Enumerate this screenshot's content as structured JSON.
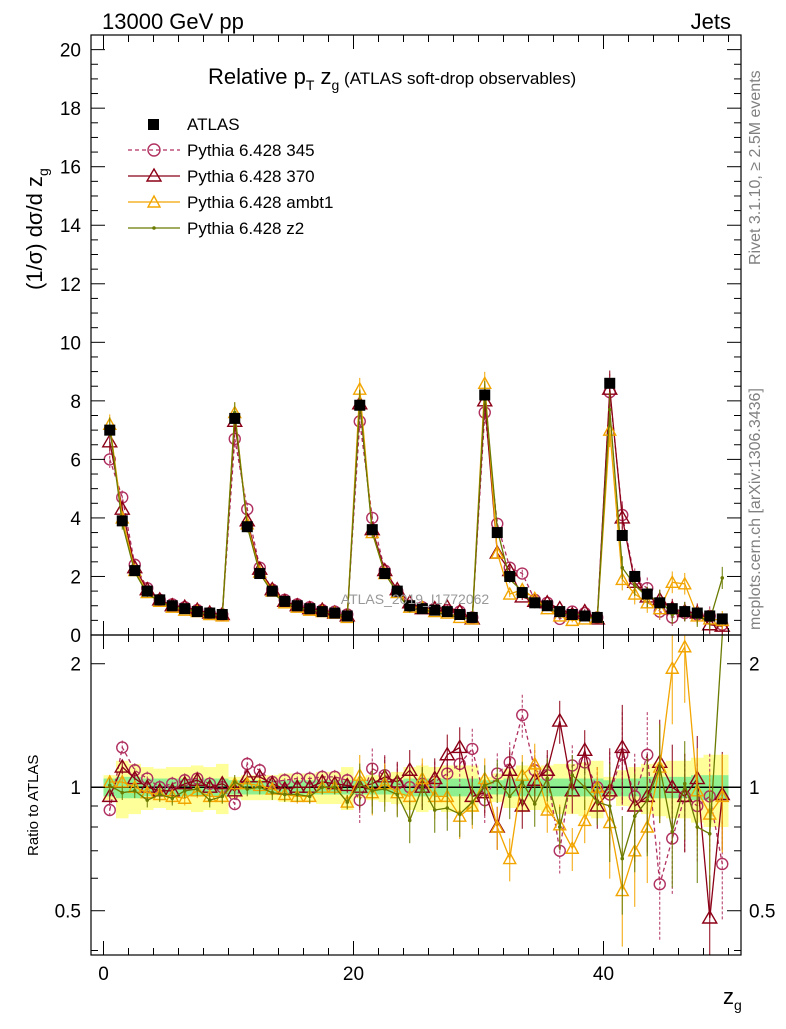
{
  "header": {
    "left": "13000 GeV pp",
    "right": "Jets",
    "side_top": "Rivet 3.1.10, ≥ 2.5M events",
    "side_bottom": "mcplots.cern.ch [arXiv:1306.3436]",
    "watermark": "ATLAS_2019_I1772062"
  },
  "colors": {
    "atlas": "#000000",
    "p345": "#b03060",
    "p370": "#8b0016",
    "ambt1": "#f2a500",
    "z2": "#6b7a00",
    "band_inner": "#90f090",
    "band_outer": "#ffff99"
  },
  "chart_data": [
    {
      "type": "line",
      "title": {
        "main": "Relative p",
        "sub": "T",
        "z": " z",
        "zsub": "g",
        "rest": " (ATLAS soft-drop observables)"
      },
      "ylabel": "(1/σ) dσ/d z",
      "ylabel_sub": "g",
      "ylim": [
        0,
        20.5
      ],
      "xlim": [
        -1,
        51
      ],
      "yticks": [
        "0",
        "2",
        "4",
        "6",
        "8",
        "10",
        "12",
        "14",
        "16",
        "18",
        "20"
      ],
      "legend_placement": "top-left",
      "legend": [
        "ATLAS",
        "Pythia 6.428 345",
        "Pythia 6.428 370",
        "Pythia 6.428 ambt1",
        "Pythia 6.428 z2"
      ],
      "x": [
        0.5,
        1.5,
        2.5,
        3.5,
        4.5,
        5.5,
        6.5,
        7.5,
        8.5,
        9.5,
        10.5,
        11.5,
        12.5,
        13.5,
        14.5,
        15.5,
        16.5,
        17.5,
        18.5,
        19.5,
        20.5,
        21.5,
        22.5,
        23.5,
        24.5,
        25.5,
        26.5,
        27.5,
        28.5,
        29.5,
        30.5,
        31.5,
        32.5,
        33.5,
        34.5,
        35.5,
        36.5,
        37.5,
        38.5,
        39.5,
        40.5,
        41.5,
        42.5,
        43.5,
        44.5,
        45.5,
        46.5,
        47.5,
        48.5,
        49.5
      ],
      "series": [
        {
          "name": "ATLAS",
          "values": [
            7.0,
            3.9,
            2.2,
            1.5,
            1.2,
            1.0,
            0.9,
            0.8,
            0.75,
            0.7,
            7.4,
            3.7,
            2.1,
            1.5,
            1.15,
            1.0,
            0.9,
            0.8,
            0.75,
            0.65,
            7.85,
            3.6,
            2.1,
            1.5,
            1.0,
            0.9,
            0.85,
            0.8,
            0.7,
            0.6,
            8.2,
            3.5,
            2.0,
            1.45,
            1.1,
            1.0,
            0.8,
            0.7,
            0.65,
            0.6,
            8.6,
            3.4,
            2.0,
            1.4,
            1.1,
            0.9,
            0.8,
            0.75,
            0.65,
            0.55
          ]
        },
        {
          "name": "Pythia 6.428 345",
          "values": [
            6.0,
            4.7,
            2.4,
            1.6,
            1.2,
            1.05,
            0.95,
            0.85,
            0.75,
            0.7,
            6.7,
            4.3,
            2.3,
            1.55,
            1.2,
            1.05,
            0.95,
            0.85,
            0.8,
            0.7,
            7.3,
            4.0,
            2.2,
            1.5,
            1.0,
            0.95,
            0.9,
            0.85,
            0.8,
            0.6,
            7.6,
            3.8,
            2.3,
            2.1,
            1.2,
            1.1,
            0.55,
            0.8,
            0.75,
            0.6,
            8.3,
            4.1,
            1.9,
            1.6,
            0.8,
            0.6,
            0.75,
            0.7,
            0.65,
            0.35
          ]
        },
        {
          "name": "Pythia 6.428 370",
          "values": [
            6.6,
            4.3,
            2.3,
            1.55,
            1.2,
            1.0,
            0.95,
            0.85,
            0.75,
            0.7,
            7.3,
            3.9,
            2.25,
            1.55,
            1.15,
            1.0,
            0.9,
            0.85,
            0.75,
            0.65,
            7.9,
            3.6,
            2.2,
            1.55,
            1.1,
            0.9,
            0.9,
            0.95,
            0.8,
            0.55,
            8.0,
            2.8,
            2.2,
            1.3,
            1.15,
            1.1,
            0.9,
            0.7,
            0.8,
            0.55,
            8.4,
            4.0,
            1.8,
            1.3,
            1.2,
            0.9,
            0.8,
            0.75,
            0.35,
            0.3
          ]
        },
        {
          "name": "Pythia 6.428 ambt1",
          "values": [
            7.2,
            4.0,
            2.2,
            1.45,
            1.15,
            0.95,
            0.85,
            0.8,
            0.7,
            0.65,
            7.6,
            3.8,
            2.15,
            1.5,
            1.1,
            0.95,
            0.85,
            0.8,
            0.75,
            0.6,
            8.4,
            3.5,
            2.1,
            1.45,
            0.95,
            0.95,
            0.8,
            0.75,
            0.6,
            0.55,
            8.6,
            2.8,
            1.4,
            1.55,
            1.25,
            0.9,
            0.65,
            0.5,
            0.55,
            0.6,
            7.0,
            1.9,
            1.4,
            1.1,
            0.9,
            1.8,
            1.75,
            0.65,
            0.55,
            0.5
          ]
        },
        {
          "name": "Pythia 6.428 z2",
          "values": [
            7.1,
            3.8,
            2.15,
            1.4,
            1.15,
            0.95,
            0.9,
            0.8,
            0.7,
            0.65,
            7.6,
            3.7,
            2.1,
            1.45,
            1.1,
            0.95,
            0.85,
            0.8,
            0.75,
            0.6,
            8.0,
            3.5,
            2.1,
            1.45,
            0.85,
            0.9,
            0.75,
            0.7,
            0.6,
            0.55,
            8.3,
            3.6,
            1.9,
            1.5,
            1.0,
            1.05,
            0.65,
            0.75,
            0.65,
            0.55,
            7.7,
            2.3,
            1.7,
            1.3,
            1.2,
            0.7,
            0.8,
            0.6,
            0.5,
            1.95
          ]
        }
      ]
    },
    {
      "type": "line",
      "title": "",
      "ylabel": "Ratio to ATLAS",
      "xlabel": "z",
      "xlabel_sub": "g",
      "ylim": [
        0.39,
        2.35
      ],
      "xlim": [
        -1,
        51
      ],
      "xticks": [
        "0",
        "20",
        "40"
      ],
      "yticks": [
        "0.5",
        "1",
        "2"
      ],
      "x": [
        0.5,
        1.5,
        2.5,
        3.5,
        4.5,
        5.5,
        6.5,
        7.5,
        8.5,
        9.5,
        10.5,
        11.5,
        12.5,
        13.5,
        14.5,
        15.5,
        16.5,
        17.5,
        18.5,
        19.5,
        20.5,
        21.5,
        22.5,
        23.5,
        24.5,
        25.5,
        26.5,
        27.5,
        28.5,
        29.5,
        30.5,
        31.5,
        32.5,
        33.5,
        34.5,
        35.5,
        36.5,
        37.5,
        38.5,
        39.5,
        40.5,
        41.5,
        42.5,
        43.5,
        44.5,
        45.5,
        46.5,
        47.5,
        48.5,
        49.5
      ],
      "band_inner": [
        0.05,
        0.06,
        0.06,
        0.05,
        0.05,
        0.05,
        0.05,
        0.05,
        0.05,
        0.05,
        0.04,
        0.04,
        0.04,
        0.04,
        0.04,
        0.04,
        0.04,
        0.04,
        0.04,
        0.04,
        0.04,
        0.04,
        0.04,
        0.04,
        0.05,
        0.05,
        0.05,
        0.05,
        0.05,
        0.05,
        0.04,
        0.04,
        0.05,
        0.05,
        0.05,
        0.05,
        0.05,
        0.05,
        0.05,
        0.05,
        0.04,
        0.05,
        0.05,
        0.06,
        0.06,
        0.06,
        0.06,
        0.07,
        0.07,
        0.07
      ],
      "band_outer": [
        0.07,
        0.16,
        0.14,
        0.12,
        0.11,
        0.12,
        0.12,
        0.13,
        0.12,
        0.14,
        0.06,
        0.07,
        0.07,
        0.07,
        0.08,
        0.08,
        0.08,
        0.09,
        0.09,
        0.12,
        0.06,
        0.07,
        0.08,
        0.09,
        0.12,
        0.13,
        0.12,
        0.13,
        0.13,
        0.13,
        0.06,
        0.08,
        0.11,
        0.13,
        0.12,
        0.13,
        0.14,
        0.14,
        0.15,
        0.16,
        0.06,
        0.1,
        0.12,
        0.14,
        0.15,
        0.16,
        0.16,
        0.18,
        0.2,
        0.2
      ],
      "series": [
        {
          "name": "Pythia 6.428 345",
          "values": [
            0.88,
            1.25,
            1.1,
            1.05,
            1.0,
            1.02,
            1.04,
            1.05,
            1.02,
            1.0,
            0.91,
            1.14,
            1.1,
            1.03,
            1.04,
            1.05,
            1.05,
            1.06,
            1.06,
            1.04,
            0.93,
            1.11,
            1.07,
            1.02,
            1.0,
            1.02,
            1.03,
            1.08,
            1.14,
            1.24,
            0.93,
            1.08,
            1.15,
            1.5,
            1.1,
            1.07,
            0.7,
            1.13,
            1.15,
            1.0,
            0.96,
            1.2,
            0.95,
            1.2,
            0.58,
            0.75,
            0.95,
            0.9,
            0.95,
            0.65
          ]
        },
        {
          "name": "Pythia 6.428 370",
          "values": [
            0.95,
            1.12,
            1.05,
            1.0,
            0.98,
            0.98,
            1.02,
            1.04,
            1.0,
            1.02,
            0.98,
            1.06,
            1.06,
            1.02,
            0.99,
            1.0,
            1.0,
            1.03,
            1.02,
            1.01,
            1.0,
            1.02,
            1.06,
            1.03,
            1.1,
            1.0,
            1.05,
            1.2,
            1.25,
            0.95,
            0.97,
            0.8,
            1.1,
            0.9,
            1.04,
            1.1,
            1.45,
            0.98,
            1.23,
            0.9,
            0.98,
            1.25,
            0.9,
            0.95,
            1.15,
            1.0,
            0.95,
            1.05,
            0.48,
            0.96
          ]
        },
        {
          "name": "Pythia 6.428 ambt1",
          "values": [
            1.03,
            1.03,
            1.0,
            0.97,
            0.96,
            0.95,
            0.94,
            0.98,
            0.95,
            0.95,
            1.02,
            1.02,
            1.01,
            0.99,
            0.96,
            0.95,
            0.95,
            1.0,
            1.0,
            0.92,
            1.07,
            0.97,
            1.02,
            0.97,
            0.95,
            1.05,
            0.95,
            0.95,
            0.85,
            0.9,
            1.05,
            0.8,
            0.67,
            1.07,
            1.14,
            0.88,
            0.81,
            0.71,
            0.83,
            1.0,
            0.82,
            0.56,
            0.7,
            0.8,
            1.12,
            1.95,
            2.2,
            0.98,
            0.86,
            0.95
          ]
        },
        {
          "name": "Pythia 6.428 z2",
          "values": [
            1.01,
            0.97,
            0.98,
            0.93,
            0.96,
            0.94,
            0.98,
            0.99,
            0.93,
            0.95,
            1.03,
            0.99,
            1.0,
            0.97,
            0.96,
            0.96,
            0.95,
            1.0,
            1.0,
            0.92,
            1.02,
            0.98,
            0.99,
            0.96,
            0.83,
            1.0,
            0.88,
            0.89,
            0.86,
            0.92,
            1.01,
            1.04,
            0.95,
            1.03,
            0.91,
            1.05,
            0.8,
            1.07,
            1.0,
            0.92,
            0.9,
            0.67,
            0.85,
            0.93,
            1.12,
            0.78,
            1.02,
            0.8,
            0.77,
            3.5
          ]
        }
      ]
    }
  ]
}
